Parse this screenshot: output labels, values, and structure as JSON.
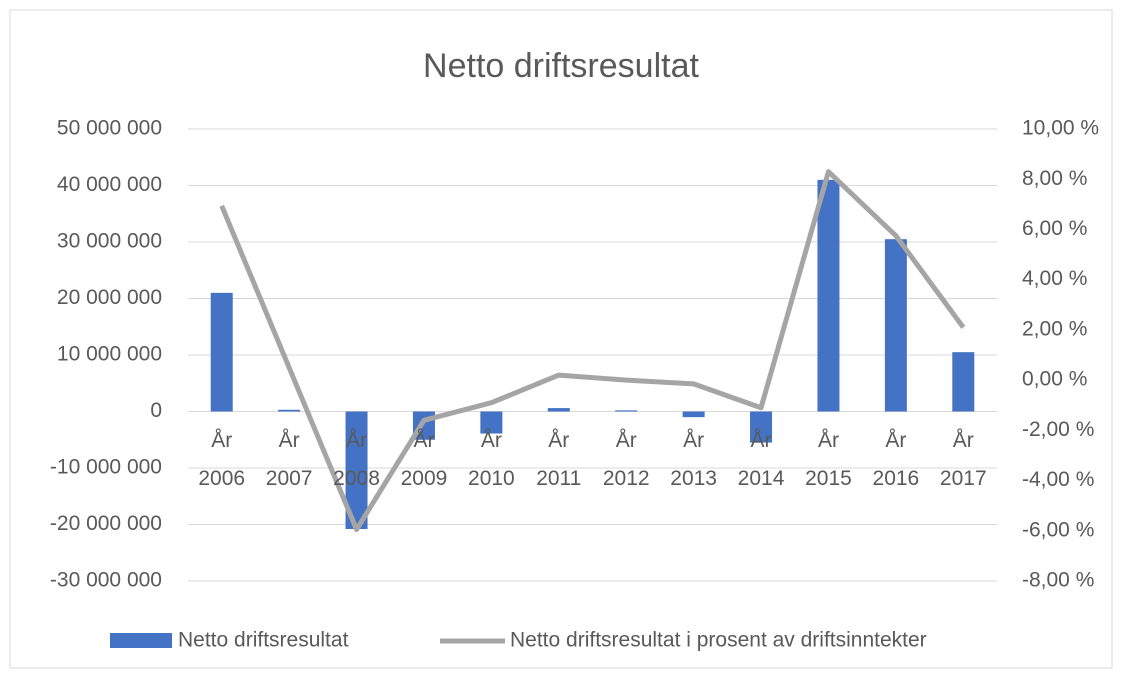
{
  "chart_data": {
    "type": "bar-line",
    "title": "Netto driftsresultat",
    "categories": [
      "År 2006",
      "År 2007",
      "År 2008",
      "År 2009",
      "År 2010",
      "År 2011",
      "År 2012",
      "År 2013",
      "År 2014",
      "År 2015",
      "År 2016",
      "År 2017"
    ],
    "series": [
      {
        "name": "Netto driftsresultat",
        "type": "bar",
        "color": "#4472c4",
        "values": [
          21000000,
          300000,
          -20800000,
          -5000000,
          -3900000,
          600000,
          200000,
          -1000000,
          -5500000,
          41000000,
          30500000,
          10500000
        ]
      },
      {
        "name": "Netto driftsresultat i prosent av driftsinntekter",
        "type": "line",
        "axis": "y2",
        "color": "#a5a5a5",
        "values": [
          6.94,
          0.5,
          -5.95,
          -1.6,
          -0.9,
          0.2,
          0.0,
          -0.15,
          -1.1,
          8.3,
          5.75,
          2.1
        ]
      }
    ],
    "ylim": [
      -30000000,
      50000000
    ],
    "yticks": [
      {
        "value": -30000000,
        "label": "-30 000 000"
      },
      {
        "value": -20000000,
        "label": "-20 000 000"
      },
      {
        "value": -10000000,
        "label": "-10 000 000"
      },
      0,
      {
        "value": 10000000,
        "label": "10 000 000"
      },
      {
        "value": 20000000,
        "label": "20 000 000"
      },
      {
        "value": 30000000,
        "label": "30 000 000"
      },
      {
        "value": 40000000,
        "label": "40 000 000"
      },
      {
        "value": 50000000,
        "label": "50 000 000"
      }
    ],
    "y2lim": [
      -8,
      10
    ],
    "y2ticks": [
      {
        "value": -8,
        "label": "-8,00 %"
      },
      {
        "value": -6,
        "label": "-6,00 %"
      },
      {
        "value": -4,
        "label": "-4,00 %"
      },
      {
        "value": -2,
        "label": "-2,00 %"
      },
      {
        "value": 0,
        "label": "0,00 %"
      },
      {
        "value": 2,
        "label": "2,00 %"
      },
      {
        "value": 4,
        "label": "4,00 %"
      },
      {
        "value": 6,
        "label": "6,00 %"
      },
      {
        "value": 8,
        "label": "8,00 %"
      },
      {
        "value": 10,
        "label": "10,00 %"
      }
    ],
    "grid": true,
    "legend": "bottom"
  }
}
